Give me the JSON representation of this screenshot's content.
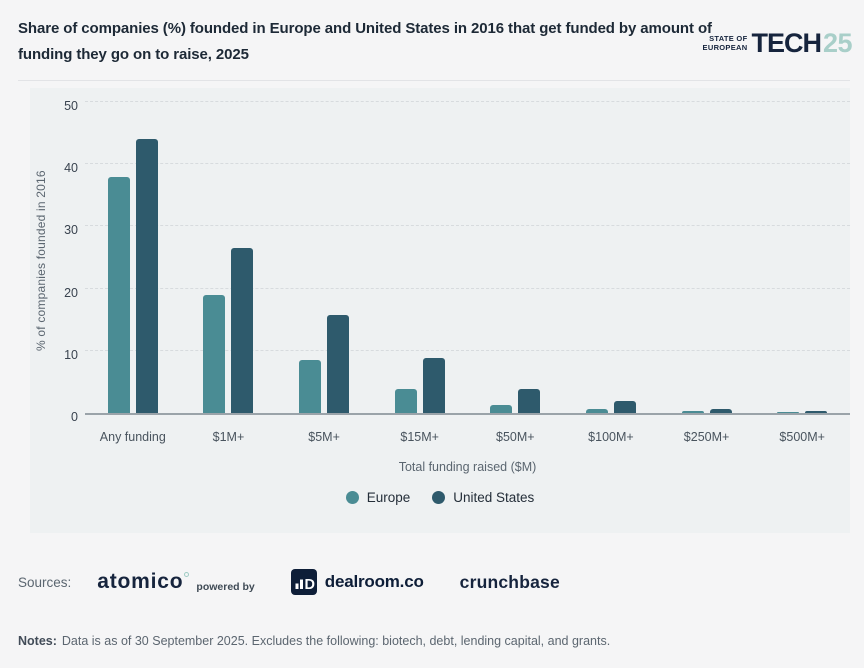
{
  "header": {
    "title": "Share of companies (%) founded in Europe and United States in 2016 that get funded by amount of funding they go on to raise, 2025",
    "logo": {
      "state_of": "STATE OF",
      "european": "EUROPEAN",
      "tech": "TECH",
      "year": "25"
    }
  },
  "chart_data": {
    "type": "bar",
    "title": "Share of companies (%) founded in Europe and United States in 2016 that get funded by amount of funding they go on to raise, 2025",
    "categories": [
      "Any funding",
      "$1M+",
      "$5M+",
      "$15M+",
      "$50M+",
      "$100M+",
      "$250M+",
      "$500M+"
    ],
    "series": [
      {
        "name": "Europe",
        "color": "#4A8C94",
        "values": [
          38,
          19,
          8.5,
          3.8,
          1.3,
          0.7,
          0.3,
          0.2
        ]
      },
      {
        "name": "United States",
        "color": "#2E5A6C",
        "values": [
          44,
          26.6,
          15.7,
          8.8,
          3.8,
          1.9,
          0.6,
          0.4
        ]
      }
    ],
    "xlabel": "Total funding raised ($M)",
    "ylabel": "% of companies founded in 2016",
    "ylim": [
      0,
      50
    ],
    "yticks": [
      0,
      10,
      20,
      30,
      40,
      50
    ],
    "grid": "horizontal-dashed",
    "legend_position": "bottom"
  },
  "sources": {
    "label": "Sources:",
    "atomico_label": "atomico",
    "powered_by_label": "powered by",
    "dealroom_label": "dealroom.co",
    "crunchbase_label": "crunchbase"
  },
  "notes": {
    "label": "Notes:",
    "text": "Data is as of 30 September 2025. Excludes the following: biotech, debt, lending capital, and grants."
  },
  "colors": {
    "europe": "#4A8C94",
    "united_states": "#2E5A6C",
    "accent_mint": "#A9CFC9",
    "navy": "#16243D",
    "panel_bg": "#EEF1F2",
    "page_bg": "#F5F5F6"
  }
}
